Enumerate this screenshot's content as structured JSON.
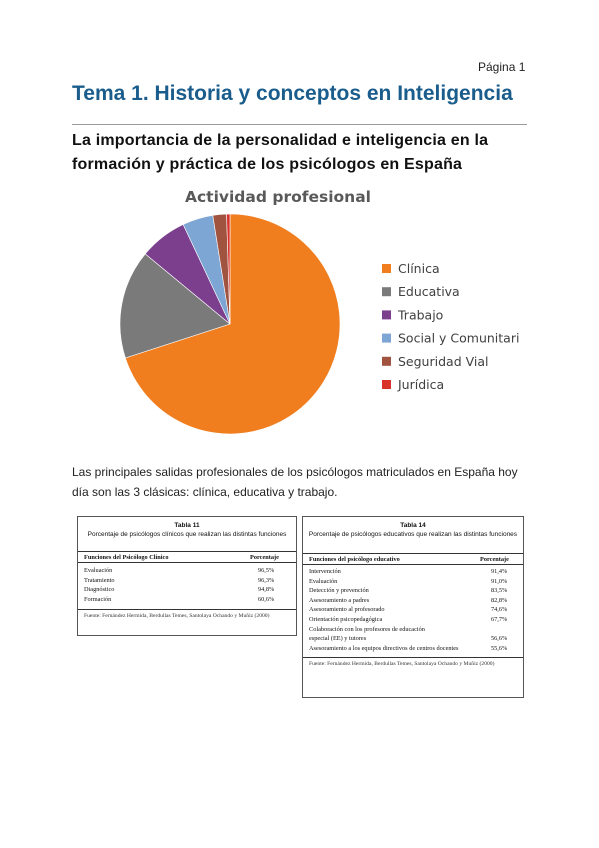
{
  "page": {
    "number_label": "Página 1"
  },
  "header": {
    "title": "Tema 1. Historia y conceptos en Inteligencia"
  },
  "section": {
    "subtitle": "La importancia de la personalidad e inteligencia en la formación y práctica de los psicólogos en España"
  },
  "chart_data": {
    "type": "pie",
    "title": "Actividad profesional",
    "legend_position": "right",
    "categories": [
      "Clínica",
      "Educativa",
      "Trabajo",
      "Social y Comunitaria",
      "Seguridad Vial",
      "Jurídica"
    ],
    "values": [
      70,
      16,
      7,
      4.5,
      2,
      0.5
    ],
    "colors": [
      "#f07d1e",
      "#7a7a7a",
      "#7b3f8e",
      "#7ea6d4",
      "#a0533f",
      "#d9322b"
    ]
  },
  "body": {
    "paragraph": "Las principales salidas profesionales de los psicólogos matriculados en España hoy día son las 3 clásicas: clínica, educativa y trabajo."
  },
  "table11": {
    "number": "Tabla 11",
    "title": "Porcentaje de psicólogos clínicos que realizan las distintas funciones",
    "col1": "Funciones del Psicólogo Clínico",
    "col2": "Porcentaje",
    "rows": [
      {
        "label": "Evaluación",
        "value": "96,5%"
      },
      {
        "label": "Tratamiento",
        "value": "96,3%"
      },
      {
        "label": "Diagnóstico",
        "value": "94,8%"
      },
      {
        "label": "Formación",
        "value": "60,6%"
      }
    ],
    "source": "Fuente: Fernández Hermida, Berdullas Temes, Santolaya Ochando y Muñiz (2000)"
  },
  "table14": {
    "number": "Tabla 14",
    "title": "Porcentaje de psicólogos educativos que realizan las distintas funciones",
    "col1": "Funciones del psicólogo educativo",
    "col2": "Porcentaje",
    "rows": [
      {
        "label": "Intervención",
        "value": "91,4%"
      },
      {
        "label": "Evaluación",
        "value": "91,0%"
      },
      {
        "label": "Detección y prevención",
        "value": "83,5%"
      },
      {
        "label": "Asesoramiento a padres",
        "value": "82,8%"
      },
      {
        "label": "Asesoramiento al profesorado",
        "value": "74,6%"
      },
      {
        "label": "Orientación psicopedagógica",
        "value": "67,7%"
      },
      {
        "label": "Colaboración con los profesores de educación",
        "value": ""
      },
      {
        "label": "especial (EE) y tutores",
        "value": "56,6%"
      },
      {
        "label": "Asesoramiento a los equipos directivos de centros docentes",
        "value": "55,6%"
      }
    ],
    "source": "Fuente: Fernández Hermida, Berdullas Temes, Santolaya Ochando y Muñiz (2000)"
  }
}
